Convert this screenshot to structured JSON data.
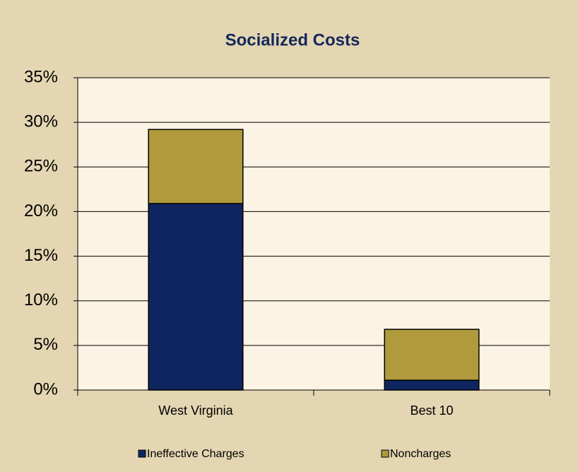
{
  "chart_data": {
    "type": "stacked-bar",
    "title": "Socialized Costs",
    "categories": [
      "West Virginia",
      "Best 10"
    ],
    "series": [
      {
        "name": "Ineffective Charges",
        "color": "#0f2560",
        "values": [
          20.9,
          1.1
        ]
      },
      {
        "name": "Noncharges",
        "color": "#b09a3c",
        "values": [
          8.3,
          5.7
        ]
      }
    ],
    "ylim": [
      0,
      35
    ],
    "yticks": [
      {
        "value": 0,
        "label": "0%"
      },
      {
        "value": 5,
        "label": "5%"
      },
      {
        "value": 10,
        "label": "10%"
      },
      {
        "value": 15,
        "label": "15%"
      },
      {
        "value": 20,
        "label": "20%"
      },
      {
        "value": 25,
        "label": "25%"
      },
      {
        "value": 30,
        "label": "30%"
      },
      {
        "value": 35,
        "label": "35%"
      }
    ],
    "grid": true
  }
}
